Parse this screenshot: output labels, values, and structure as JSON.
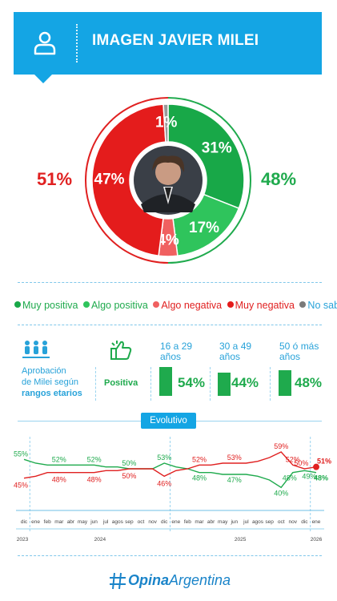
{
  "header": {
    "title": "IMAGEN JAVIER MILEI",
    "icon": "user-icon"
  },
  "chart_data": [
    {
      "type": "pie",
      "title": "IMAGEN JAVIER MILEI",
      "slices": [
        {
          "label": "Muy positiva",
          "value": 31,
          "color": "#18a848"
        },
        {
          "label": "Algo positiva",
          "value": 17,
          "color": "#2fc45c"
        },
        {
          "label": "Algo negativa",
          "value": 4,
          "color": "#f06060"
        },
        {
          "label": "Muy negativa",
          "value": 47,
          "color": "#e41c1c"
        },
        {
          "label": "No sabe",
          "value": 1,
          "color": "#9a9a9a"
        }
      ],
      "totals": {
        "negative": "51%",
        "positive": "48%"
      },
      "slice_labels": [
        "31%",
        "17%",
        "4%",
        "47%",
        "1%"
      ]
    },
    {
      "type": "bar",
      "title": "Aprobación de Milei según rangos etarios",
      "categories": [
        "16 a 29 años",
        "30 a 49 años",
        "50 ó más años"
      ],
      "series": [
        {
          "name": "Positiva",
          "values": [
            54,
            44,
            48
          ]
        }
      ]
    },
    {
      "type": "line",
      "title": "Evolutivo",
      "x": [
        "dic",
        "ene",
        "feb",
        "mar",
        "abr",
        "may",
        "jun",
        "jul",
        "agos",
        "sep",
        "oct",
        "nov",
        "dic",
        "ene",
        "feb",
        "mar",
        "abr",
        "may",
        "jun",
        "jul",
        "agos",
        "sep",
        "oct",
        "nov",
        "dic",
        "ene"
      ],
      "years": [
        "2023",
        "2024",
        "2025",
        "2026"
      ],
      "series": [
        {
          "name": "Positiva",
          "color": "#1faa4d",
          "values": [
            55,
            53,
            52,
            52,
            52,
            52,
            52,
            51,
            51,
            50,
            50,
            50,
            53,
            51,
            50,
            48,
            48,
            47,
            47,
            47,
            46,
            44,
            40,
            48,
            49,
            48
          ]
        },
        {
          "name": "Negativa",
          "color": "#e02020",
          "values": [
            45,
            46,
            48,
            48,
            48,
            48,
            48,
            49,
            49,
            50,
            50,
            50,
            46,
            49,
            50,
            52,
            52,
            53,
            53,
            53,
            54,
            56,
            59,
            52,
            50,
            51
          ]
        }
      ],
      "labels": {
        "positiva": [
          "55%",
          "52%",
          "52%",
          "50%",
          "53%",
          "48%",
          "47%",
          "40%",
          "48%",
          "49%",
          "48%"
        ],
        "negativa": [
          "45%",
          "48%",
          "48%",
          "50%",
          "46%",
          "52%",
          "53%",
          "59%",
          "52%",
          "50%",
          "51%"
        ]
      },
      "ylim": [
        35,
        65
      ]
    }
  ],
  "legend": [
    {
      "label": "Muy positiva",
      "color": "#18a848"
    },
    {
      "label": "Algo positiva",
      "color": "#2fc45c"
    },
    {
      "label": "Algo negativa",
      "color": "#f06060"
    },
    {
      "label": "Muy negativa",
      "color": "#e41c1c"
    },
    {
      "label": "No sabe",
      "color": "#7a7a7a"
    }
  ],
  "age_section": {
    "title_line1": "Aprobación",
    "title_line2": "de Milei según",
    "title_bold": "rangos etarios",
    "row_label": "Positiva",
    "ranges": [
      {
        "line1": "16 a 29",
        "line2": "años",
        "pct": "54%"
      },
      {
        "line1": "30 a 49",
        "line2": "años",
        "pct": "44%"
      },
      {
        "line1": "50 ó más",
        "line2": "años",
        "pct": "48%"
      }
    ]
  },
  "evolutivo_label": "Evolutivo",
  "footer": {
    "logo_bold": "Opina",
    "logo_regular": "Argentina"
  }
}
